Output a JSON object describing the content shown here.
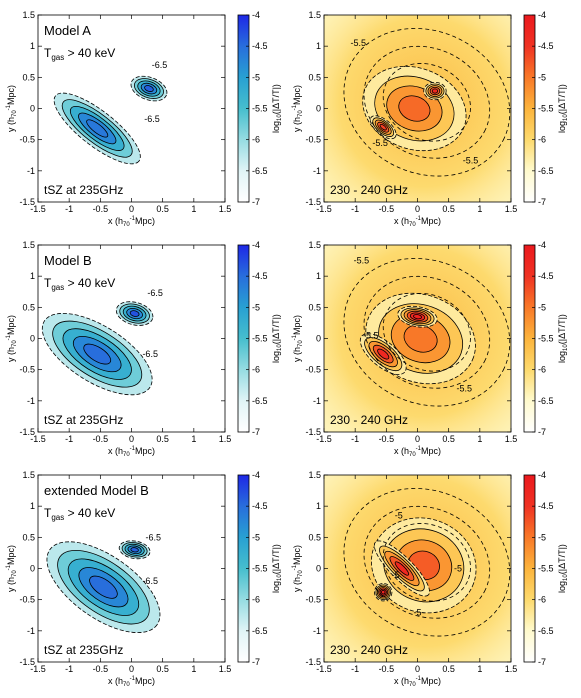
{
  "chart_data": {
    "type": "heatmap",
    "layout": "3x2 grid",
    "shared_axes": {
      "xlabel": "x (h70⁻¹Mpc)",
      "ylabel": "y (h70⁻¹Mpc)",
      "xlim": [
        -1.5,
        1.5
      ],
      "ylim": [
        -1.5,
        1.5
      ],
      "ticks": [
        "-1.5",
        "-1",
        "-0.5",
        "0",
        "0.5",
        "1",
        "1.5"
      ],
      "tick_values": [
        -1.5,
        -1,
        -0.5,
        0,
        0.5,
        1,
        1.5
      ],
      "colorbar_label": "log10(|ΔT/T|)",
      "colorbar_ticks": [
        "-4",
        "-4.5",
        "-5",
        "-5.5",
        "-6",
        "-6.5",
        "-7"
      ],
      "colorbar_values": [
        -4,
        -4.5,
        -5,
        -5.5,
        -6,
        -6.5,
        -7
      ]
    },
    "panels": [
      {
        "id": "a-tsz",
        "colormap": "blue",
        "title": "Model A",
        "subtitle": "T",
        "subtitle_sub": "gas",
        "subtitle_rest": " > 40 keV",
        "footer": "tSZ at 235GHz",
        "contour_labels": [
          {
            "text": "-6.5",
            "x": 0.45,
            "y": 0.65
          },
          {
            "text": "-6.5",
            "x": 0.33,
            "y": -0.22
          }
        ],
        "blobs": [
          {
            "cx": -0.55,
            "cy": -0.32,
            "rx": 0.85,
            "ry": 0.28,
            "angle": -38,
            "peak": -4.6
          },
          {
            "cx": 0.28,
            "cy": 0.32,
            "rx": 0.3,
            "ry": 0.18,
            "angle": -20,
            "peak": -4.4
          }
        ]
      },
      {
        "id": "a-band",
        "colormap": "diverging",
        "footer": "230 - 240 GHz",
        "contour_labels": [
          {
            "text": "-5.5",
            "x": -0.95,
            "y": 1.0
          },
          {
            "text": "-5.5",
            "x": -0.6,
            "y": -0.6
          },
          {
            "text": "-5.5",
            "x": 0.85,
            "y": -0.88
          }
        ],
        "blobs": [
          {
            "cx": -0.05,
            "cy": 0.0,
            "rx": 0.85,
            "ry": 0.65,
            "angle": -20,
            "peak": -4.9
          },
          {
            "cx": 0.28,
            "cy": 0.28,
            "rx": 0.18,
            "ry": 0.14,
            "angle": 0,
            "peak": -4.3
          },
          {
            "cx": -0.55,
            "cy": -0.3,
            "rx": 0.25,
            "ry": 0.12,
            "angle": -40,
            "peak": -4.6
          }
        ]
      },
      {
        "id": "b-tsz",
        "colormap": "blue",
        "title": "Model B",
        "subtitle": "T",
        "subtitle_sub": "gas",
        "subtitle_rest": " > 40 keV",
        "footer": "tSZ at 235GHz",
        "contour_labels": [
          {
            "text": "-6.5",
            "x": 0.38,
            "y": 0.68
          },
          {
            "text": "-6.5",
            "x": 0.3,
            "y": -0.3
          }
        ],
        "blobs": [
          {
            "cx": -0.55,
            "cy": -0.25,
            "rx": 1.0,
            "ry": 0.45,
            "angle": -32,
            "peak": -4.5
          },
          {
            "cx": 0.05,
            "cy": 0.4,
            "rx": 0.3,
            "ry": 0.18,
            "angle": -15,
            "peak": -4.3
          }
        ]
      },
      {
        "id": "b-band",
        "colormap": "diverging",
        "footer": "230 - 240 GHz",
        "contour_labels": [
          {
            "text": "-5.5",
            "x": -0.9,
            "y": 1.2
          },
          {
            "text": "-5.5",
            "x": -0.75,
            "y": 0.0
          },
          {
            "text": "-5.5",
            "x": 0.75,
            "y": -0.85
          }
        ],
        "blobs": [
          {
            "cx": 0.05,
            "cy": 0.0,
            "rx": 0.9,
            "ry": 0.7,
            "angle": -20,
            "peak": -5.0
          },
          {
            "cx": 0.0,
            "cy": 0.35,
            "rx": 0.32,
            "ry": 0.16,
            "angle": -10,
            "peak": -4.2
          },
          {
            "cx": -0.55,
            "cy": -0.25,
            "rx": 0.45,
            "ry": 0.2,
            "angle": -40,
            "peak": -4.3
          }
        ]
      },
      {
        "id": "ext-tsz",
        "colormap": "blue",
        "title": "extended Model B",
        "subtitle": "T",
        "subtitle_sub": "gas",
        "subtitle_rest": " > 40 keV",
        "footer": "tSZ at 235GHz",
        "contour_labels": [
          {
            "text": "-6.5",
            "x": 0.35,
            "y": 0.45
          },
          {
            "text": "-6.5",
            "x": 0.3,
            "y": -0.25
          }
        ],
        "blobs": [
          {
            "cx": -0.45,
            "cy": -0.3,
            "rx": 1.05,
            "ry": 0.5,
            "angle": -35,
            "peak": -4.5
          },
          {
            "cx": 0.05,
            "cy": 0.3,
            "rx": 0.25,
            "ry": 0.14,
            "angle": -10,
            "peak": -4.4
          }
        ]
      },
      {
        "id": "ext-band",
        "colormap": "diverging",
        "footer": "230 - 240 GHz",
        "contour_labels": [
          {
            "text": "-5",
            "x": -0.3,
            "y": 0.8
          },
          {
            "text": "-5",
            "x": 0.65,
            "y": -0.05
          },
          {
            "text": "-5",
            "x": 0.0,
            "y": -0.75
          },
          {
            "text": "-5",
            "x": -0.35,
            "y": -0.15
          }
        ],
        "blobs": [
          {
            "cx": 0.1,
            "cy": 0.05,
            "rx": 0.85,
            "ry": 0.75,
            "angle": -20,
            "peak": -4.8
          },
          {
            "cx": -0.25,
            "cy": 0.0,
            "rx": 0.6,
            "ry": 0.18,
            "angle": -45,
            "peak": -4.3
          },
          {
            "cx": -0.55,
            "cy": -0.38,
            "rx": 0.14,
            "ry": 0.14,
            "angle": 0,
            "peak": -4.2
          }
        ]
      }
    ]
  }
}
